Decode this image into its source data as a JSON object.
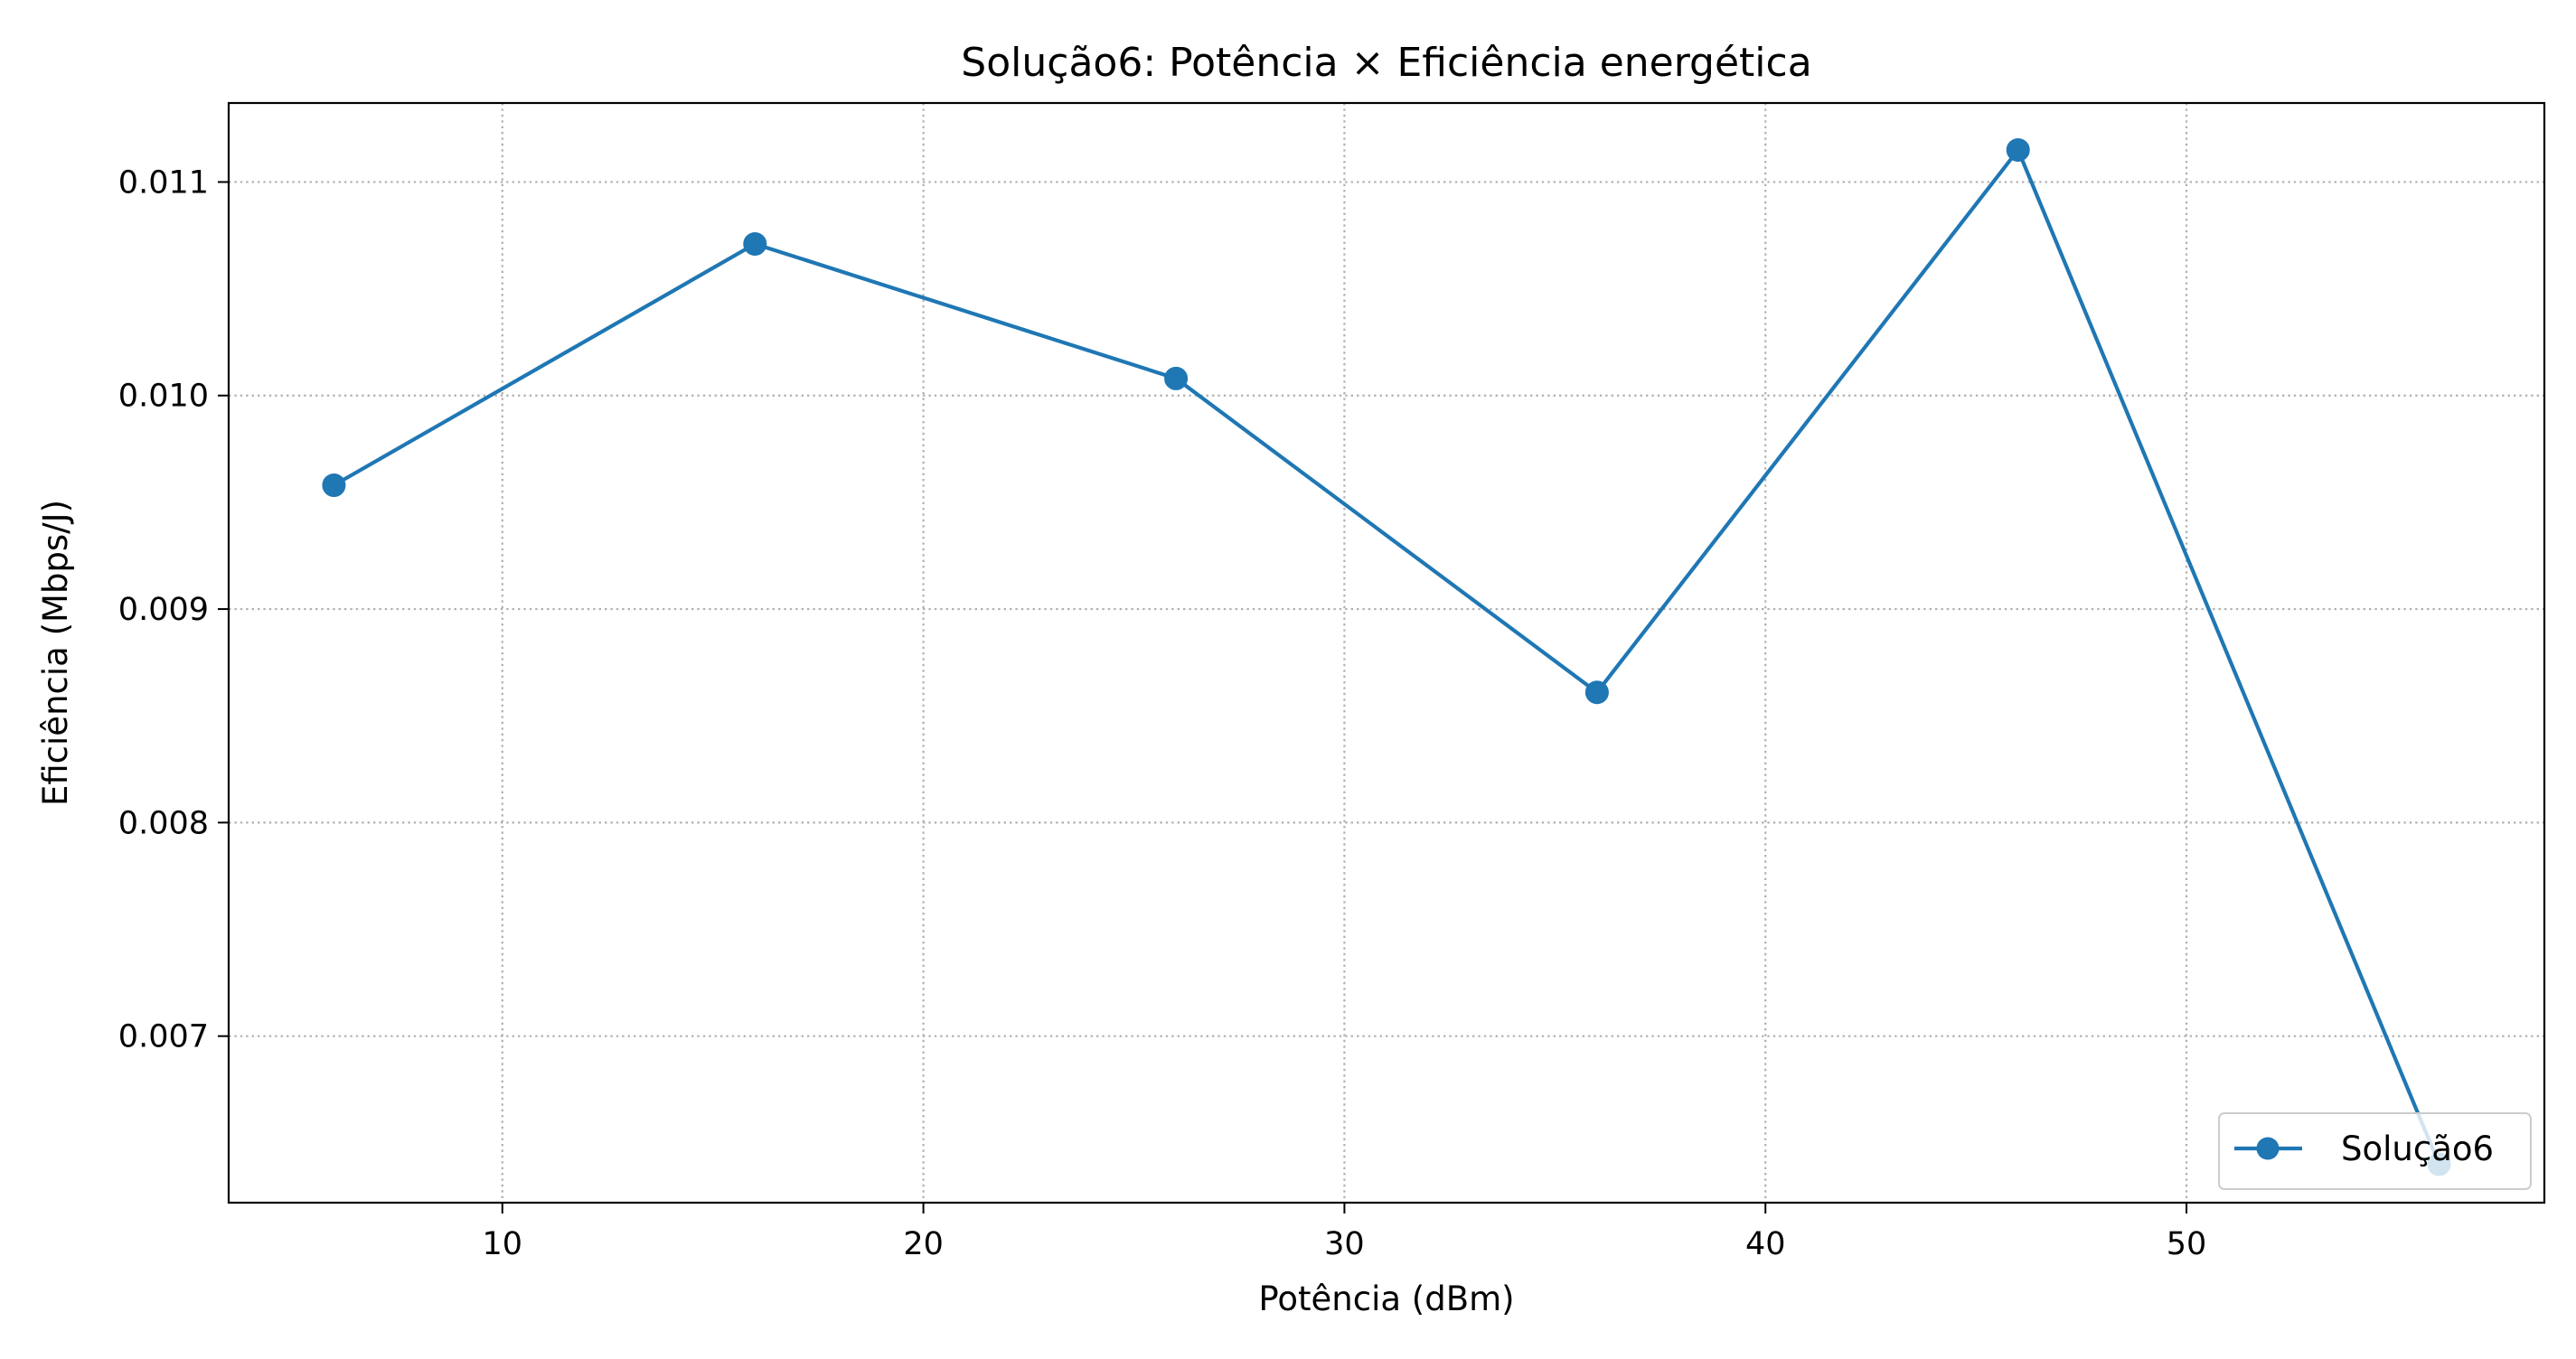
{
  "chart_data": {
    "type": "line",
    "title": "Solução6: Potência × Eficiência energética",
    "xlabel": "Potência (dBm)",
    "ylabel": "Eficiência (Mbps/J)",
    "x": [
      6,
      16,
      26,
      36,
      46,
      56
    ],
    "series": [
      {
        "name": "Solução6",
        "values": [
          0.00958,
          0.01071,
          0.01008,
          0.00861,
          0.01115,
          0.0064
        ],
        "color": "#1f77b4",
        "marker": "circle"
      }
    ],
    "xlim": [
      3.5,
      58.5
    ],
    "ylim": [
      0.00622,
      0.01137
    ],
    "xticks": [
      10,
      20,
      30,
      40,
      50
    ],
    "yticks": [
      0.007,
      0.008,
      0.009,
      0.01,
      0.011
    ],
    "xtick_labels": [
      "10",
      "20",
      "30",
      "40",
      "50"
    ],
    "ytick_labels": [
      "0.007",
      "0.008",
      "0.009",
      "0.010",
      "0.011"
    ],
    "grid": true,
    "legend_position": "lower-right"
  }
}
